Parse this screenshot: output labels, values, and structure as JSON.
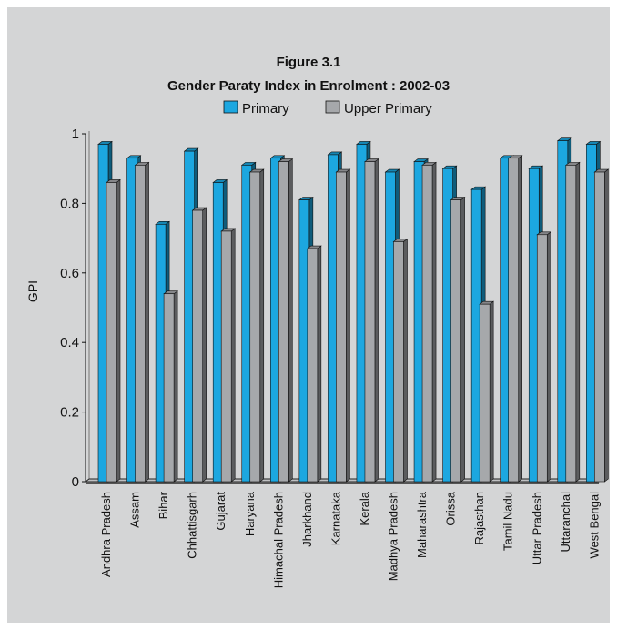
{
  "chart_data": {
    "type": "bar",
    "title": "Figure 3.1",
    "subtitle": "Gender Paraty Index in Enrolment : 2002-03",
    "ylabel": "GPI",
    "xlabel": "",
    "ylim": [
      0,
      1
    ],
    "yticks": [
      "0",
      "0.2",
      "0.4",
      "0.6",
      "0.8",
      "1"
    ],
    "legend_position": "top-center",
    "grid": false,
    "categories": [
      "Andhra Pradesh",
      "Assam",
      "Bihar",
      "Chhattisgarh",
      "Gujarat",
      "Haryana",
      "Himachal Pradesh",
      "Jharkhand",
      "Karnataka",
      "Kerala",
      "Madhya Pradesh",
      "Maharashtra",
      "Orissa",
      "Rajasthan",
      "Tamil Nadu",
      "Uttar Pradesh",
      "Uttaranchal",
      "West Bengal"
    ],
    "series": [
      {
        "name": "Primary",
        "color": "#1ca7e0",
        "values": [
          0.97,
          0.93,
          0.74,
          0.95,
          0.86,
          0.91,
          0.93,
          0.81,
          0.94,
          0.97,
          0.89,
          0.92,
          0.9,
          0.84,
          0.93,
          0.9,
          0.98,
          0.97
        ]
      },
      {
        "name": "Upper Primary",
        "color": "#a6a8ab",
        "values": [
          0.86,
          0.91,
          0.54,
          0.78,
          0.72,
          0.89,
          0.92,
          0.67,
          0.89,
          0.92,
          0.69,
          0.91,
          0.81,
          0.51,
          0.93,
          0.71,
          0.91,
          0.89
        ]
      }
    ]
  }
}
